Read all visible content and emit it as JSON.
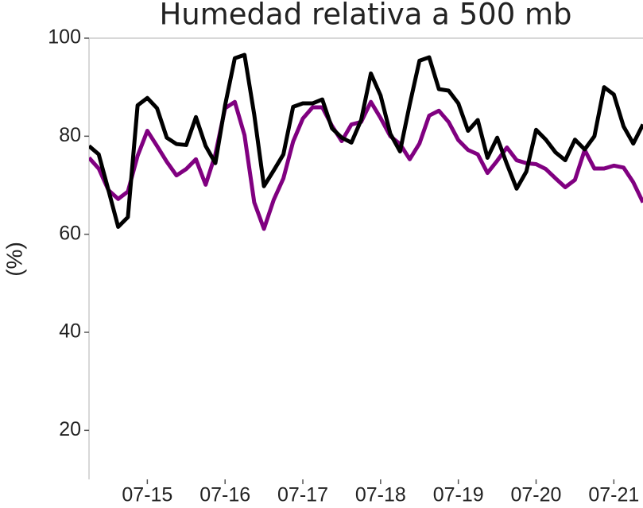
{
  "chart_data": {
    "type": "line",
    "title": "Humedad relativa a 500 mb",
    "y_label": "(%)",
    "x": [
      14.25,
      14.375,
      14.5,
      14.625,
      14.75,
      14.875,
      15,
      15.125,
      15.25,
      15.375,
      15.5,
      15.625,
      15.75,
      15.875,
      16,
      16.125,
      16.25,
      16.375,
      16.5,
      16.625,
      16.75,
      16.875,
      17,
      17.125,
      17.25,
      17.375,
      17.5,
      17.625,
      17.75,
      17.875,
      18,
      18.125,
      18.25,
      18.375,
      18.5,
      18.625,
      18.75,
      18.875,
      19,
      19.125,
      19.25,
      19.375,
      19.5,
      19.625,
      19.75,
      19.875,
      20,
      20.125,
      20.25,
      20.375,
      20.5,
      20.625,
      20.75,
      20.875,
      21,
      21.125,
      21.25,
      21.375
    ],
    "series": [
      {
        "color": "#800080",
        "values": [
          75.6,
          73.4,
          69,
          67.2,
          68.7,
          76,
          81.1,
          78,
          74.8,
          72,
          73.3,
          75.3,
          70.1,
          76.3,
          85.7,
          87,
          80.2,
          66.5,
          61.1,
          67,
          71.4,
          78.9,
          83.6,
          85.9,
          85.9,
          82.1,
          79,
          82.4,
          82.9,
          87,
          83.7,
          80,
          78.4,
          75.3,
          78.5,
          84.2,
          85.2,
          82.9,
          79.2,
          77.2,
          76.3,
          72.5,
          75,
          77.7,
          75.1,
          74.5,
          74.3,
          73.3,
          71.4,
          69.6,
          71.1,
          77.2,
          73.4,
          73.4,
          74,
          73.6,
          70.6,
          66.5
        ]
      },
      {
        "color": "#000000",
        "values": [
          78,
          76.3,
          69,
          61.5,
          63.5,
          86.3,
          87.8,
          85.7,
          79.7,
          78.4,
          78.2,
          83.9,
          78,
          74.5,
          86.3,
          95.9,
          96.6,
          84.4,
          69.8,
          73,
          76.3,
          86,
          86.7,
          86.7,
          87.5,
          81.6,
          79.7,
          78.7,
          83.3,
          92.8,
          88.3,
          80.5,
          76.9,
          86.5,
          95.4,
          96.1,
          89.6,
          89.3,
          86.7,
          81.1,
          83.3,
          75.6,
          79.7,
          74.3,
          69.3,
          72.8,
          81.3,
          79.3,
          76.7,
          75.1,
          79.3,
          77.3,
          80,
          90,
          88.5,
          82,
          78.5,
          82.4
        ]
      }
    ],
    "xlim": [
      14.25,
      21.375
    ],
    "xticks": [
      {
        "value": 15,
        "label": "07-15"
      },
      {
        "value": 16,
        "label": "07-16"
      },
      {
        "value": 17,
        "label": "07-17"
      },
      {
        "value": 18,
        "label": "07-18"
      },
      {
        "value": 19,
        "label": "07-19"
      },
      {
        "value": 20,
        "label": "07-20"
      },
      {
        "value": 21,
        "label": "07-21"
      }
    ],
    "ylim": [
      10,
      100
    ],
    "yticks": [
      20,
      40,
      60,
      80,
      100
    ]
  }
}
